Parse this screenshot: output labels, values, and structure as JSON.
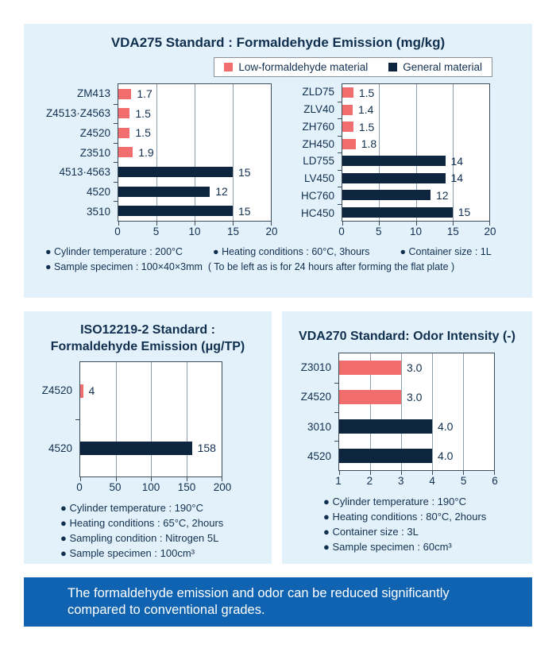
{
  "colors": {
    "pink": "#f26e6e",
    "navy_bar": "#0e2540",
    "navy_text": "#11304f",
    "panel_bg": "#e3f1fb",
    "banner_bg": "#0f63b0",
    "grid": "#8f9fae",
    "plot_border": "#3c4c5a",
    "legend_border": "#8a9298"
  },
  "legend": {
    "items": [
      {
        "label": "Low-formaldehyde material",
        "color_key": "pink"
      },
      {
        "label": "General material",
        "color_key": "navy_bar"
      }
    ]
  },
  "panels": {
    "vda275": {
      "title": "VDA275 Standard : Formaldehyde Emission (mg/kg)",
      "notes_lines": [
        [
          "● Cylinder temperature : 200°C",
          "● Heating conditions : 60°C, 3hours",
          "● Container size : 1L"
        ],
        [
          "● Sample specimen : 100×40×3mm  ( To be left as is for 24 hours after forming the flat plate )"
        ]
      ]
    },
    "iso12219": {
      "title_line1": "ISO12219-2 Standard :",
      "title_line2": "Formaldehyde Emission (μg/TP)",
      "notes_lines": [
        [
          "● Cylinder temperature : 190°C"
        ],
        [
          "● Heating conditions : 65°C, 2hours"
        ],
        [
          "● Sampling condition : Nitrogen 5L"
        ],
        [
          "● Sample specimen : 100cm³"
        ]
      ]
    },
    "vda270": {
      "title": "VDA270 Standard: Odor Intensity (-)",
      "notes_lines": [
        [
          "● Cylinder temperature : 190°C"
        ],
        [
          "● Heating conditions : 80°C, 2hours"
        ],
        [
          "● Container size : 3L"
        ],
        [
          "● Sample specimen : 60cm³"
        ]
      ]
    }
  },
  "banner": {
    "line1": "The formaldehyde emission and odor can be reduced significantly",
    "line2": "compared to conventional grades."
  },
  "chart_data": [
    {
      "type": "bar",
      "orientation": "horizontal",
      "name": "vda275-left",
      "title": "VDA275 Standard : Formaldehyde Emission (mg/kg)",
      "categories": [
        "ZM413",
        "Z4513·Z4563",
        "Z4520",
        "Z3510",
        "4513·4563",
        "4520",
        "3510"
      ],
      "values": [
        1.7,
        1.5,
        1.5,
        1.9,
        15,
        12,
        15
      ],
      "value_labels": [
        "1.7",
        "1.5",
        "1.5",
        "1.9",
        "15",
        "12",
        "15"
      ],
      "bar_colors": [
        "pink",
        "pink",
        "pink",
        "pink",
        "navy_bar",
        "navy_bar",
        "navy_bar"
      ],
      "xlim": [
        0,
        20
      ],
      "xticks": [
        0,
        5,
        10,
        15,
        20
      ],
      "grid": true,
      "legend_position": "top-right"
    },
    {
      "type": "bar",
      "orientation": "horizontal",
      "name": "vda275-right",
      "title": "VDA275 Standard : Formaldehyde Emission (mg/kg)",
      "categories": [
        "ZLD75",
        "ZLV40",
        "ZH760",
        "ZH450",
        "LD755",
        "LV450",
        "HC760",
        "HC450"
      ],
      "values": [
        1.5,
        1.4,
        1.5,
        1.8,
        14,
        14,
        12,
        15
      ],
      "value_labels": [
        "1.5",
        "1.4",
        "1.5",
        "1.8",
        "14",
        "14",
        "12",
        "15"
      ],
      "bar_colors": [
        "pink",
        "pink",
        "pink",
        "pink",
        "navy_bar",
        "navy_bar",
        "navy_bar",
        "navy_bar"
      ],
      "xlim": [
        0,
        20
      ],
      "xticks": [
        0,
        5,
        10,
        15,
        20
      ],
      "grid": true
    },
    {
      "type": "bar",
      "orientation": "horizontal",
      "name": "iso12219-2",
      "title": "ISO12219-2 Standard : Formaldehyde Emission (μg/TP)",
      "categories": [
        "Z4520",
        "4520"
      ],
      "values": [
        4,
        158
      ],
      "value_labels": [
        "4",
        "158"
      ],
      "bar_colors": [
        "pink",
        "navy_bar"
      ],
      "xlim": [
        0,
        200
      ],
      "xticks": [
        0,
        50,
        100,
        150,
        200
      ],
      "grid": true
    },
    {
      "type": "bar",
      "orientation": "horizontal",
      "name": "vda270",
      "title": "VDA270 Standard: Odor Intensity (-)",
      "categories": [
        "Z3010",
        "Z4520",
        "3010",
        "4520"
      ],
      "values": [
        3.0,
        3.0,
        4.0,
        4.0
      ],
      "value_labels": [
        "3.0",
        "3.0",
        "4.0",
        "4.0"
      ],
      "bar_colors": [
        "pink",
        "pink",
        "navy_bar",
        "navy_bar"
      ],
      "xlim": [
        1,
        6
      ],
      "xticks": [
        1,
        2,
        3,
        4,
        5,
        6
      ],
      "grid": true
    }
  ]
}
